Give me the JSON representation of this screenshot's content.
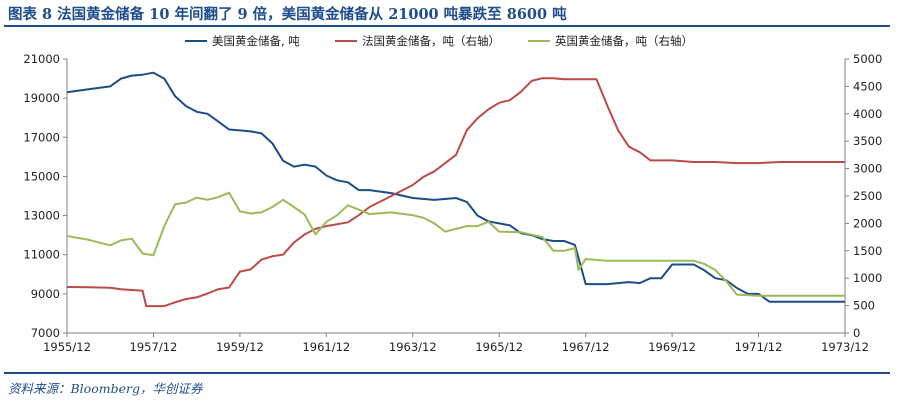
{
  "header": {
    "title": "图表 8  法国黄金储备 10 年间翻了 9 倍，美国黄金储备从 21000 吨暴跌至 8600 吨"
  },
  "footer": {
    "source": "资料来源：Bloomberg，华创证券"
  },
  "chart_data": {
    "type": "line",
    "x_tick_labels": [
      "1955/12",
      "1957/12",
      "1959/12",
      "1961/12",
      "1963/12",
      "1965/12",
      "1967/12",
      "1969/12",
      "1971/12",
      "1973/12"
    ],
    "x_range": [
      "1955/12",
      "1973/12"
    ],
    "y_left": {
      "ticks": [
        7000,
        9000,
        11000,
        13000,
        15000,
        17000,
        19000,
        21000
      ],
      "range": [
        7000,
        21000
      ]
    },
    "y_right": {
      "ticks": [
        0,
        500,
        1000,
        1500,
        2000,
        2500,
        3000,
        3500,
        4000,
        4500,
        5000
      ],
      "range": [
        0,
        5000
      ]
    },
    "grid": false,
    "legend_position": "top",
    "series": [
      {
        "name": "美国黄金储备, 吨",
        "axis": "left",
        "color": "#1a4e86",
        "points": [
          [
            "1955/12",
            19300
          ],
          [
            "1956/06",
            19450
          ],
          [
            "1956/12",
            19600
          ],
          [
            "1957/03",
            20000
          ],
          [
            "1957/06",
            20150
          ],
          [
            "1957/09",
            20200
          ],
          [
            "1957/12",
            20300
          ],
          [
            "1958/03",
            20000
          ],
          [
            "1958/06",
            19100
          ],
          [
            "1958/09",
            18600
          ],
          [
            "1958/12",
            18300
          ],
          [
            "1959/03",
            18200
          ],
          [
            "1959/06",
            17800
          ],
          [
            "1959/09",
            17400
          ],
          [
            "1959/12",
            17350
          ],
          [
            "1960/03",
            17300
          ],
          [
            "1960/06",
            17200
          ],
          [
            "1960/09",
            16700
          ],
          [
            "1960/12",
            15800
          ],
          [
            "1961/03",
            15500
          ],
          [
            "1961/06",
            15600
          ],
          [
            "1961/09",
            15500
          ],
          [
            "1961/12",
            15050
          ],
          [
            "1962/03",
            14800
          ],
          [
            "1962/06",
            14700
          ],
          [
            "1962/09",
            14300
          ],
          [
            "1962/12",
            14300
          ],
          [
            "1963/06",
            14150
          ],
          [
            "1963/12",
            13900
          ],
          [
            "1964/06",
            13800
          ],
          [
            "1964/12",
            13900
          ],
          [
            "1965/03",
            13700
          ],
          [
            "1965/06",
            13000
          ],
          [
            "1965/09",
            12700
          ],
          [
            "1965/12",
            12600
          ],
          [
            "1966/03",
            12500
          ],
          [
            "1966/06",
            12100
          ],
          [
            "1966/09",
            12000
          ],
          [
            "1966/12",
            11800
          ],
          [
            "1967/03",
            11700
          ],
          [
            "1967/06",
            11700
          ],
          [
            "1967/09",
            11500
          ],
          [
            "1967/12",
            9500
          ],
          [
            "1968/06",
            9500
          ],
          [
            "1968/12",
            9600
          ],
          [
            "1969/03",
            9550
          ],
          [
            "1969/06",
            9800
          ],
          [
            "1969/09",
            9800
          ],
          [
            "1969/12",
            10500
          ],
          [
            "1970/03",
            10500
          ],
          [
            "1970/06",
            10500
          ],
          [
            "1970/09",
            10200
          ],
          [
            "1970/12",
            9800
          ],
          [
            "1971/03",
            9700
          ],
          [
            "1971/06",
            9300
          ],
          [
            "1971/09",
            9000
          ],
          [
            "1971/12",
            9000
          ],
          [
            "1972/03",
            8600
          ],
          [
            "1972/12",
            8600
          ],
          [
            "1973/12",
            8600
          ]
        ]
      },
      {
        "name": "法国黄金储备，吨（右轴）",
        "axis": "right",
        "color": "#be4a47",
        "points": [
          [
            "1955/12",
            840
          ],
          [
            "1956/06",
            835
          ],
          [
            "1956/12",
            825
          ],
          [
            "1957/03",
            800
          ],
          [
            "1957/09",
            770
          ],
          [
            "1957/10",
            490
          ],
          [
            "1957/12",
            490
          ],
          [
            "1958/03",
            490
          ],
          [
            "1958/06",
            560
          ],
          [
            "1958/09",
            620
          ],
          [
            "1958/12",
            650
          ],
          [
            "1959/03",
            720
          ],
          [
            "1959/06",
            800
          ],
          [
            "1959/09",
            830
          ],
          [
            "1959/12",
            1120
          ],
          [
            "1960/03",
            1160
          ],
          [
            "1960/06",
            1340
          ],
          [
            "1960/09",
            1400
          ],
          [
            "1960/12",
            1430
          ],
          [
            "1961/03",
            1650
          ],
          [
            "1961/06",
            1800
          ],
          [
            "1961/09",
            1900
          ],
          [
            "1961/12",
            1950
          ],
          [
            "1962/06",
            2020
          ],
          [
            "1962/09",
            2150
          ],
          [
            "1962/12",
            2300
          ],
          [
            "1963/06",
            2500
          ],
          [
            "1963/12",
            2700
          ],
          [
            "1964/03",
            2850
          ],
          [
            "1964/06",
            2950
          ],
          [
            "1964/09",
            3100
          ],
          [
            "1964/12",
            3250
          ],
          [
            "1965/03",
            3700
          ],
          [
            "1965/06",
            3920
          ],
          [
            "1965/09",
            4080
          ],
          [
            "1965/12",
            4200
          ],
          [
            "1966/03",
            4250
          ],
          [
            "1966/06",
            4400
          ],
          [
            "1966/09",
            4600
          ],
          [
            "1966/12",
            4650
          ],
          [
            "1967/03",
            4650
          ],
          [
            "1967/06",
            4630
          ],
          [
            "1967/09",
            4630
          ],
          [
            "1967/12",
            4630
          ],
          [
            "1968/03",
            4630
          ],
          [
            "1968/06",
            4150
          ],
          [
            "1968/09",
            3700
          ],
          [
            "1968/12",
            3400
          ],
          [
            "1969/03",
            3300
          ],
          [
            "1969/06",
            3150
          ],
          [
            "1969/12",
            3150
          ],
          [
            "1970/06",
            3120
          ],
          [
            "1970/12",
            3120
          ],
          [
            "1971/06",
            3100
          ],
          [
            "1971/12",
            3100
          ],
          [
            "1972/06",
            3120
          ],
          [
            "1973/12",
            3120
          ]
        ]
      },
      {
        "name": "英国黄金储备，吨（右轴）",
        "axis": "right",
        "color": "#9bbb59",
        "points": [
          [
            "1955/12",
            1770
          ],
          [
            "1956/06",
            1700
          ],
          [
            "1956/12",
            1600
          ],
          [
            "1957/03",
            1690
          ],
          [
            "1957/06",
            1720
          ],
          [
            "1957/09",
            1450
          ],
          [
            "1957/12",
            1420
          ],
          [
            "1958/03",
            1950
          ],
          [
            "1958/06",
            2350
          ],
          [
            "1958/09",
            2380
          ],
          [
            "1958/12",
            2470
          ],
          [
            "1959/03",
            2430
          ],
          [
            "1959/06",
            2480
          ],
          [
            "1959/09",
            2560
          ],
          [
            "1959/12",
            2220
          ],
          [
            "1960/03",
            2180
          ],
          [
            "1960/06",
            2200
          ],
          [
            "1960/09",
            2300
          ],
          [
            "1960/12",
            2430
          ],
          [
            "1961/03",
            2300
          ],
          [
            "1961/06",
            2160
          ],
          [
            "1961/09",
            1800
          ],
          [
            "1961/12",
            2030
          ],
          [
            "1962/03",
            2150
          ],
          [
            "1962/06",
            2330
          ],
          [
            "1962/09",
            2250
          ],
          [
            "1962/12",
            2170
          ],
          [
            "1963/06",
            2200
          ],
          [
            "1963/12",
            2150
          ],
          [
            "1964/03",
            2100
          ],
          [
            "1964/06",
            2000
          ],
          [
            "1964/09",
            1850
          ],
          [
            "1964/12",
            1900
          ],
          [
            "1965/03",
            1950
          ],
          [
            "1965/06",
            1950
          ],
          [
            "1965/09",
            2030
          ],
          [
            "1965/12",
            1850
          ],
          [
            "1966/06",
            1840
          ],
          [
            "1966/12",
            1750
          ],
          [
            "1967/03",
            1500
          ],
          [
            "1967/06",
            1500
          ],
          [
            "1967/09",
            1550
          ],
          [
            "1967/10",
            1150
          ],
          [
            "1967/12",
            1350
          ],
          [
            "1968/06",
            1320
          ],
          [
            "1968/12",
            1320
          ],
          [
            "1969/06",
            1320
          ],
          [
            "1969/12",
            1320
          ],
          [
            "1970/06",
            1320
          ],
          [
            "1970/09",
            1260
          ],
          [
            "1970/12",
            1150
          ],
          [
            "1971/03",
            950
          ],
          [
            "1971/06",
            700
          ],
          [
            "1971/12",
            680
          ],
          [
            "1972/06",
            680
          ],
          [
            "1973/12",
            680
          ]
        ]
      }
    ]
  }
}
